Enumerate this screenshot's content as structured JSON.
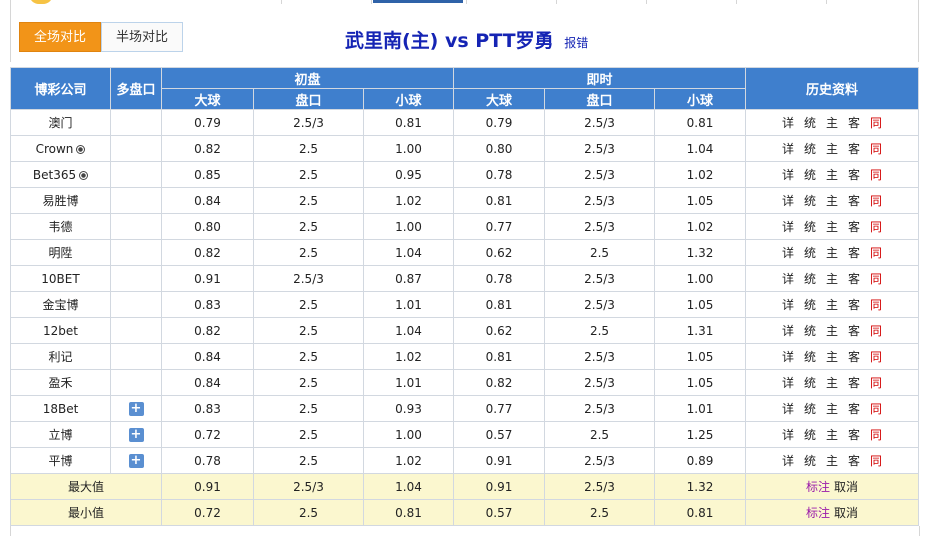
{
  "header": {
    "tabs": [
      {
        "label": "全场对比",
        "active": true
      },
      {
        "label": "半场对比",
        "active": false
      }
    ],
    "match_title": "武里南(主) vs PTT罗勇",
    "report_label": "报错"
  },
  "table": {
    "headers": {
      "company": "博彩公司",
      "multi": "多盘口",
      "initial": "初盘",
      "live": "即时",
      "history": "历史资料",
      "big": "大球",
      "line": "盘口",
      "small": "小球"
    },
    "history_links": [
      "详",
      "统",
      "主",
      "客",
      "同"
    ],
    "rows": [
      {
        "company": "澳门",
        "ball": false,
        "plus": false,
        "i_big": "0.79",
        "i_line": "2.5/3",
        "i_small": "0.81",
        "l_big": "0.79",
        "l_line": "2.5/3",
        "l_small": "0.81"
      },
      {
        "company": "Crown",
        "ball": true,
        "plus": false,
        "i_big": "0.82",
        "i_line": "2.5",
        "i_small": "1.00",
        "l_big": "0.80",
        "l_line": "2.5/3",
        "l_small": "1.04"
      },
      {
        "company": "Bet365",
        "ball": true,
        "plus": false,
        "i_big": "0.85",
        "i_line": "2.5",
        "i_small": "0.95",
        "l_big": "0.78",
        "l_line": "2.5/3",
        "l_small": "1.02"
      },
      {
        "company": "易胜博",
        "ball": false,
        "plus": false,
        "i_big": "0.84",
        "i_line": "2.5",
        "i_small": "1.02",
        "l_big": "0.81",
        "l_line": "2.5/3",
        "l_small": "1.05"
      },
      {
        "company": "韦德",
        "ball": false,
        "plus": false,
        "i_big": "0.80",
        "i_line": "2.5",
        "i_small": "1.00",
        "l_big": "0.77",
        "l_line": "2.5/3",
        "l_small": "1.02"
      },
      {
        "company": "明陞",
        "ball": false,
        "plus": false,
        "i_big": "0.82",
        "i_line": "2.5",
        "i_small": "1.04",
        "l_big": "0.62",
        "l_line": "2.5",
        "l_small": "1.32"
      },
      {
        "company": "10BET",
        "ball": false,
        "plus": false,
        "i_big": "0.91",
        "i_line": "2.5/3",
        "i_small": "0.87",
        "l_big": "0.78",
        "l_line": "2.5/3",
        "l_small": "1.00"
      },
      {
        "company": "金宝博",
        "ball": false,
        "plus": false,
        "i_big": "0.83",
        "i_line": "2.5",
        "i_small": "1.01",
        "l_big": "0.81",
        "l_line": "2.5/3",
        "l_small": "1.05"
      },
      {
        "company": "12bet",
        "ball": false,
        "plus": false,
        "i_big": "0.82",
        "i_line": "2.5",
        "i_small": "1.04",
        "l_big": "0.62",
        "l_line": "2.5",
        "l_small": "1.31"
      },
      {
        "company": "利记",
        "ball": false,
        "plus": false,
        "i_big": "0.84",
        "i_line": "2.5",
        "i_small": "1.02",
        "l_big": "0.81",
        "l_line": "2.5/3",
        "l_small": "1.05"
      },
      {
        "company": "盈禾",
        "ball": false,
        "plus": false,
        "i_big": "0.84",
        "i_line": "2.5",
        "i_small": "1.01",
        "l_big": "0.82",
        "l_line": "2.5/3",
        "l_small": "1.05"
      },
      {
        "company": "18Bet",
        "ball": false,
        "plus": true,
        "i_big": "0.83",
        "i_line": "2.5",
        "i_small": "0.93",
        "l_big": "0.77",
        "l_line": "2.5/3",
        "l_small": "1.01"
      },
      {
        "company": "立博",
        "ball": false,
        "plus": true,
        "i_big": "0.72",
        "i_line": "2.5",
        "i_small": "1.00",
        "l_big": "0.57",
        "l_line": "2.5",
        "l_small": "1.25"
      },
      {
        "company": "平博",
        "ball": false,
        "plus": true,
        "i_big": "0.78",
        "i_line": "2.5",
        "i_small": "1.02",
        "l_big": "0.91",
        "l_line": "2.5/3",
        "l_small": "0.89"
      }
    ],
    "stats": [
      {
        "label": "最大值",
        "i_big": "0.91",
        "i_line": "2.5/3",
        "i_small": "1.04",
        "l_big": "0.91",
        "l_line": "2.5/3",
        "l_small": "1.32",
        "mark": "标注",
        "cancel": "取消"
      },
      {
        "label": "最小值",
        "i_big": "0.72",
        "i_line": "2.5",
        "i_small": "0.81",
        "l_big": "0.57",
        "l_line": "2.5",
        "l_small": "0.81",
        "mark": "标注",
        "cancel": "取消"
      }
    ]
  },
  "icons": {
    "ball": "soccer-ball-icon",
    "plus": "expand-plus-icon",
    "plus_glyph": "+"
  },
  "colors": {
    "header_bg": "#3f7fcd",
    "active_tab": "#f29418",
    "title": "#1524b4",
    "stat_bg": "#fbf7cf",
    "history_red": "#d30000",
    "mark": "#9b1baa"
  }
}
